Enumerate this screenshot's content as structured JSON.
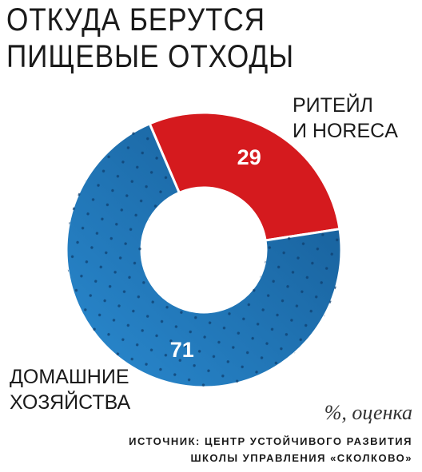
{
  "title": [
    "ОТКУДА БЕРУТСЯ",
    "ПИЩЕВЫЕ ОТХОДЫ"
  ],
  "chart_data": {
    "type": "pie",
    "variant": "donut",
    "slices": [
      {
        "label": [
          "РИТЕЙЛ",
          "И HORECA"
        ],
        "value": 29,
        "color": "#d51a1e"
      },
      {
        "label": [
          "ДОМАШНИЕ",
          "ХОЗЯЙСТВА"
        ],
        "value": 71,
        "color": "#1e72b5"
      }
    ],
    "unit_note": "%, оценка"
  },
  "source": [
    "ИСТОЧНИК: ЦЕНТР УСТОЙЧИВОГО РАЗВИТИЯ",
    "ШКОЛЫ УПРАВЛЕНИЯ «СКОЛКОВО»"
  ]
}
